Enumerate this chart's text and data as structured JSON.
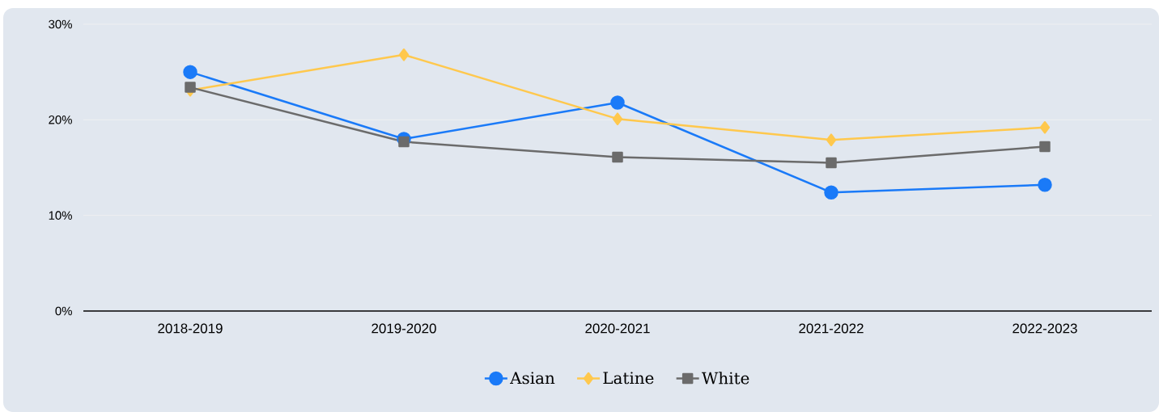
{
  "chart_data": {
    "type": "line",
    "categories": [
      "2018-2019",
      "2019-2020",
      "2020-2021",
      "2021-2022",
      "2022-2023"
    ],
    "series": [
      {
        "name": "Asian",
        "color": "#1a7af8",
        "marker": "circle",
        "values": [
          25.0,
          18.0,
          21.8,
          12.4,
          13.2
        ]
      },
      {
        "name": "Latine",
        "color": "#ffc84d",
        "marker": "diamond",
        "values": [
          23.1,
          26.8,
          20.1,
          17.9,
          19.2
        ]
      },
      {
        "name": "White",
        "color": "#6b6b6b",
        "marker": "square",
        "values": [
          23.4,
          17.7,
          16.1,
          15.5,
          17.2
        ]
      }
    ],
    "ylim": [
      0,
      30
    ],
    "yticks": [
      {
        "value": 0,
        "label": "0%"
      },
      {
        "value": 10,
        "label": "10%"
      },
      {
        "value": 20,
        "label": "20%"
      },
      {
        "value": 30,
        "label": "30%"
      }
    ],
    "grid": "y",
    "legend": "bottom",
    "line_style": "solid"
  }
}
